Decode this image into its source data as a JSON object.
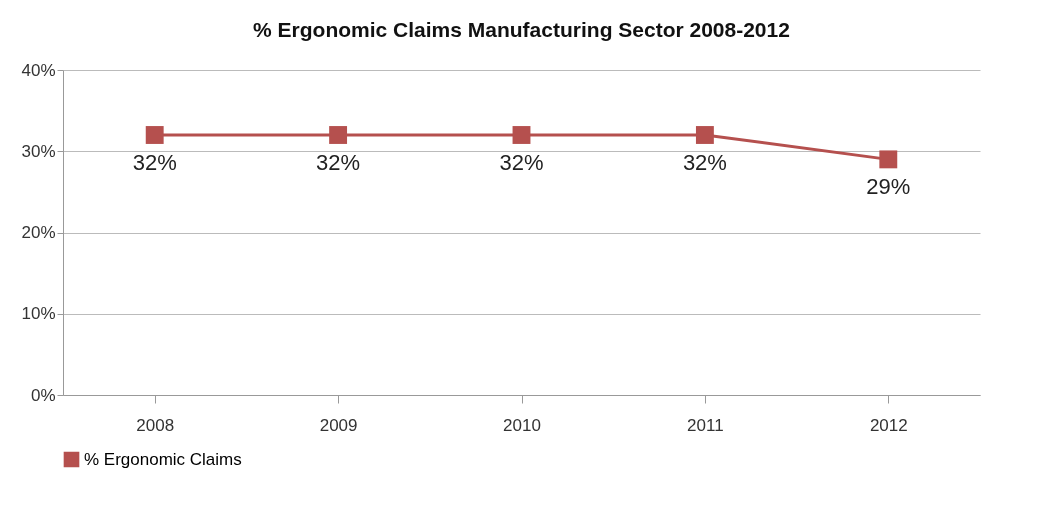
{
  "chart_data": {
    "type": "line",
    "title": "% Ergonomic Claims Manufacturing Sector 2008-2012",
    "categories": [
      "2008",
      "2009",
      "2010",
      "2011",
      "2012"
    ],
    "series": [
      {
        "name": "% Ergonomic Claims",
        "color": "#b5504e",
        "values": [
          32,
          32,
          32,
          32,
          29
        ]
      }
    ],
    "ylim": [
      0,
      40
    ],
    "yticks": [
      {
        "value": 0,
        "label": "0%"
      },
      {
        "value": 10,
        "label": "10%"
      },
      {
        "value": 20,
        "label": "20%"
      },
      {
        "value": 30,
        "label": "30%"
      },
      {
        "value": 40,
        "label": "40%"
      }
    ],
    "value_labels": [
      "32%",
      "32%",
      "32%",
      "32%",
      "29%"
    ],
    "grid": "y",
    "legend": "bottom",
    "marker": "square",
    "line_style": "solid"
  }
}
